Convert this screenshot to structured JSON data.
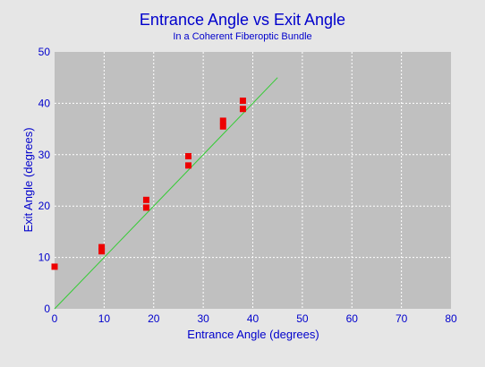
{
  "chart_data": {
    "type": "scatter",
    "title": "Entrance Angle vs Exit Angle",
    "subtitle": "In a Coherent Fiberoptic Bundle",
    "xlabel": "Entrance Angle (degrees)",
    "ylabel": "Exit Angle (degrees)",
    "xlim": [
      0,
      80
    ],
    "ylim": [
      0,
      50
    ],
    "xticks": [
      0,
      10,
      20,
      30,
      40,
      50,
      60,
      70,
      80
    ],
    "yticks": [
      0,
      10,
      20,
      30,
      40,
      50
    ],
    "grid": true,
    "series": [
      {
        "type": "scatter",
        "color": "#ee0000",
        "points": [
          {
            "x": 0,
            "y": 8.2
          },
          {
            "x": 9.5,
            "y": 11.2
          },
          {
            "x": 9.5,
            "y": 12.0
          },
          {
            "x": 18.5,
            "y": 19.7
          },
          {
            "x": 18.5,
            "y": 21.2
          },
          {
            "x": 27,
            "y": 27.9
          },
          {
            "x": 27,
            "y": 29.7
          },
          {
            "x": 34,
            "y": 35.5
          },
          {
            "x": 34,
            "y": 36.6
          },
          {
            "x": 38,
            "y": 38.9
          },
          {
            "x": 38,
            "y": 40.5
          }
        ]
      },
      {
        "type": "line",
        "color": "#33cc33",
        "points": [
          {
            "x": 0,
            "y": 0
          },
          {
            "x": 45,
            "y": 45
          }
        ]
      }
    ],
    "colors": {
      "plot_background": "#c0c0c0",
      "page_background": "#e6e6e6",
      "grid": "#ffffff",
      "text": "#0000cc"
    }
  }
}
